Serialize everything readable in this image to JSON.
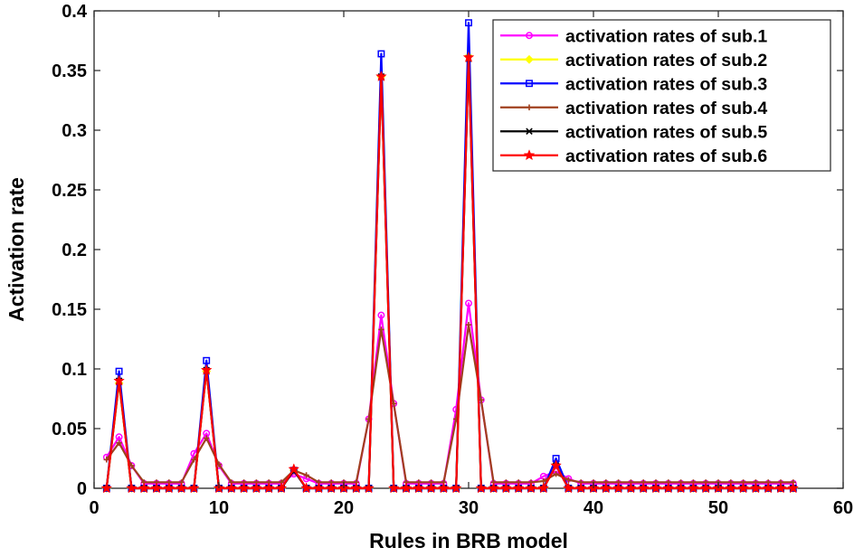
{
  "chart_data": {
    "type": "line",
    "title": "",
    "xlabel": "Rules in BRB model",
    "ylabel": "Activation rate",
    "xlim": [
      0,
      60
    ],
    "ylim": [
      0,
      0.4
    ],
    "x_ticks": [
      "0",
      "10",
      "20",
      "30",
      "40",
      "50",
      "60"
    ],
    "y_ticks": [
      "0",
      "0.05",
      "0.1",
      "0.15",
      "0.2",
      "0.25",
      "0.3",
      "0.35",
      "0.4"
    ],
    "grid": false,
    "legend_position": "top-right",
    "x": [
      1,
      2,
      3,
      4,
      5,
      6,
      7,
      8,
      9,
      10,
      11,
      12,
      13,
      14,
      15,
      16,
      17,
      18,
      19,
      20,
      21,
      22,
      23,
      24,
      25,
      26,
      27,
      28,
      29,
      30,
      31,
      32,
      33,
      34,
      35,
      36,
      37,
      38,
      39,
      40,
      41,
      42,
      43,
      44,
      45,
      46,
      47,
      48,
      49,
      50,
      51,
      52,
      53,
      54,
      55,
      56
    ],
    "series": [
      {
        "name": "activation rates of sub.1",
        "color": "#ff00ff",
        "marker": "circle",
        "values": [
          0.026,
          0.043,
          0.019,
          0.004,
          0.004,
          0.004,
          0.004,
          0.029,
          0.046,
          0.019,
          0.004,
          0.004,
          0.004,
          0.004,
          0.004,
          0.012,
          0.008,
          0.004,
          0.004,
          0.004,
          0.004,
          0.058,
          0.145,
          0.071,
          0.004,
          0.004,
          0.004,
          0.004,
          0.066,
          0.155,
          0.074,
          0.004,
          0.004,
          0.004,
          0.004,
          0.01,
          0.014,
          0.008,
          0.004,
          0.004,
          0.004,
          0.004,
          0.004,
          0.004,
          0.004,
          0.004,
          0.004,
          0.004,
          0.004,
          0.004,
          0.004,
          0.004,
          0.004,
          0.004,
          0.004,
          0.004
        ]
      },
      {
        "name": "activation rates of sub.2",
        "color": "#ffff00",
        "marker": "diamond",
        "values": [
          0.0,
          0.088,
          0.0,
          0.0,
          0.0,
          0.0,
          0.0,
          0.0,
          0.098,
          0.0,
          0.0,
          0.0,
          0.0,
          0.0,
          0.0,
          0.015,
          0.0,
          0.0,
          0.0,
          0.0,
          0.0,
          0.0,
          0.345,
          0.0,
          0.0,
          0.0,
          0.0,
          0.0,
          0.0,
          0.362,
          0.0,
          0.0,
          0.0,
          0.0,
          0.0,
          0.0,
          0.02,
          0.0,
          0.0,
          0.0,
          0.0,
          0.0,
          0.0,
          0.0,
          0.0,
          0.0,
          0.0,
          0.0,
          0.0,
          0.0,
          0.0,
          0.0,
          0.0,
          0.0,
          0.0,
          0.0
        ]
      },
      {
        "name": "activation rates of sub.3",
        "color": "#0000ff",
        "marker": "square",
        "values": [
          0.0,
          0.098,
          0.0,
          0.0,
          0.0,
          0.0,
          0.0,
          0.0,
          0.107,
          0.0,
          0.0,
          0.0,
          0.0,
          0.0,
          0.0,
          0.015,
          0.0,
          0.0,
          0.0,
          0.0,
          0.0,
          0.0,
          0.364,
          0.0,
          0.0,
          0.0,
          0.0,
          0.0,
          0.0,
          0.39,
          0.0,
          0.0,
          0.0,
          0.0,
          0.0,
          0.0,
          0.025,
          0.0,
          0.0,
          0.0,
          0.0,
          0.0,
          0.0,
          0.0,
          0.0,
          0.0,
          0.0,
          0.0,
          0.0,
          0.0,
          0.0,
          0.0,
          0.0,
          0.0,
          0.0,
          0.0
        ]
      },
      {
        "name": "activation rates of sub.4",
        "color": "#a0401e",
        "marker": "plus",
        "values": [
          0.024,
          0.038,
          0.019,
          0.005,
          0.005,
          0.005,
          0.005,
          0.024,
          0.042,
          0.02,
          0.005,
          0.005,
          0.005,
          0.005,
          0.005,
          0.015,
          0.011,
          0.005,
          0.005,
          0.005,
          0.005,
          0.058,
          0.133,
          0.071,
          0.005,
          0.005,
          0.005,
          0.005,
          0.058,
          0.137,
          0.074,
          0.005,
          0.005,
          0.005,
          0.005,
          0.006,
          0.012,
          0.007,
          0.005,
          0.005,
          0.005,
          0.005,
          0.005,
          0.005,
          0.005,
          0.005,
          0.005,
          0.005,
          0.005,
          0.005,
          0.005,
          0.005,
          0.005,
          0.005,
          0.005,
          0.005
        ]
      },
      {
        "name": "activation rates of sub.5",
        "color": "#000000",
        "marker": "x",
        "values": [
          0.0,
          0.09,
          0.0,
          0.0,
          0.0,
          0.0,
          0.0,
          0.0,
          0.099,
          0.0,
          0.0,
          0.0,
          0.0,
          0.0,
          0.0,
          0.015,
          0.0,
          0.0,
          0.0,
          0.0,
          0.0,
          0.0,
          0.345,
          0.0,
          0.0,
          0.0,
          0.0,
          0.0,
          0.0,
          0.36,
          0.0,
          0.0,
          0.0,
          0.0,
          0.0,
          0.0,
          0.019,
          0.0,
          0.0,
          0.0,
          0.0,
          0.0,
          0.0,
          0.0,
          0.0,
          0.0,
          0.0,
          0.0,
          0.0,
          0.0,
          0.0,
          0.0,
          0.0,
          0.0,
          0.0,
          0.0
        ]
      },
      {
        "name": "activation rates of sub.6",
        "color": "#ff0000",
        "marker": "star",
        "values": [
          0.0,
          0.09,
          0.0,
          0.0,
          0.0,
          0.0,
          0.0,
          0.0,
          0.099,
          0.0,
          0.0,
          0.0,
          0.0,
          0.0,
          0.0,
          0.016,
          0.0,
          0.0,
          0.0,
          0.0,
          0.0,
          0.0,
          0.345,
          0.0,
          0.0,
          0.0,
          0.0,
          0.0,
          0.0,
          0.361,
          0.0,
          0.0,
          0.0,
          0.0,
          0.0,
          0.0,
          0.019,
          0.0,
          0.0,
          0.0,
          0.0,
          0.0,
          0.0,
          0.0,
          0.0,
          0.0,
          0.0,
          0.0,
          0.0,
          0.0,
          0.0,
          0.0,
          0.0,
          0.0,
          0.0,
          0.0
        ]
      }
    ]
  }
}
